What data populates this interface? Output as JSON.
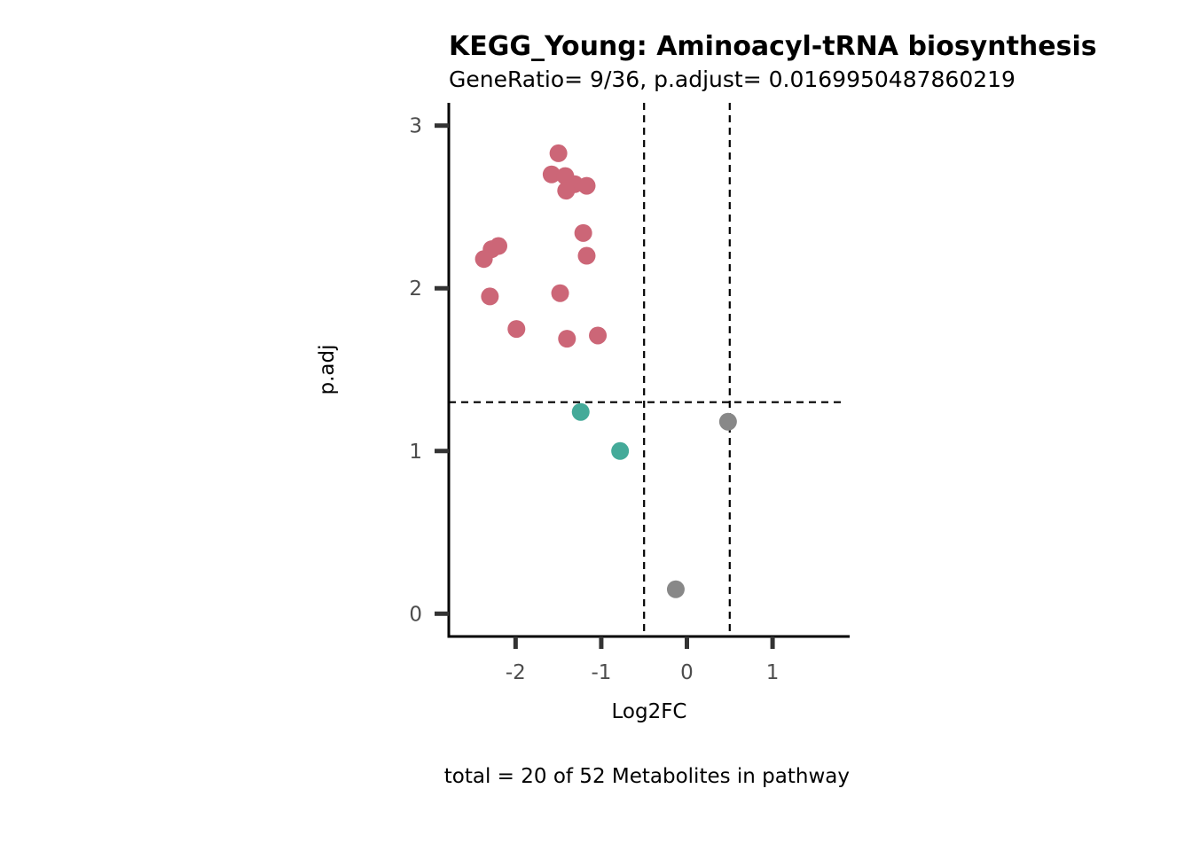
{
  "chart_data": {
    "type": "scatter",
    "title": "KEGG_Young: Aminoacyl-tRNA biosynthesis",
    "subtitle": "GeneRatio= 9/36, p.adjust= 0.0169950487860219",
    "xlabel": "Log2FC",
    "ylabel": "p.adj",
    "caption": "total = 20 of 52 Metabolites in pathway",
    "xlim": [
      -2.78,
      1.9
    ],
    "ylim": [
      -0.14,
      3.14
    ],
    "x_ticks": [
      -2,
      -1,
      0,
      1
    ],
    "x_tick_labels": [
      "-2",
      "-1",
      "0",
      "1"
    ],
    "y_ticks": [
      0,
      1,
      2,
      3
    ],
    "y_tick_labels": [
      "0",
      "1",
      "2",
      "3"
    ],
    "thresholds": {
      "vlines": [
        -0.5,
        0.5
      ],
      "hline": 1.3
    },
    "grid": false,
    "legend": "none",
    "series": [
      {
        "color": "#cc6677",
        "points": [
          {
            "x": -1.5,
            "y": 2.83
          },
          {
            "x": -1.58,
            "y": 2.7
          },
          {
            "x": -1.42,
            "y": 2.69
          },
          {
            "x": -1.31,
            "y": 2.64
          },
          {
            "x": -1.17,
            "y": 2.63
          },
          {
            "x": -1.41,
            "y": 2.6
          },
          {
            "x": -1.21,
            "y": 2.34
          },
          {
            "x": -2.2,
            "y": 2.26
          },
          {
            "x": -2.28,
            "y": 2.24
          },
          {
            "x": -1.17,
            "y": 2.2
          },
          {
            "x": -2.37,
            "y": 2.18
          },
          {
            "x": -1.48,
            "y": 1.97
          },
          {
            "x": -2.3,
            "y": 1.95
          },
          {
            "x": -1.99,
            "y": 1.75
          },
          {
            "x": -1.04,
            "y": 1.71
          },
          {
            "x": -1.4,
            "y": 1.69
          }
        ]
      },
      {
        "color": "#44aa99",
        "points": [
          {
            "x": -1.24,
            "y": 1.24
          },
          {
            "x": -0.78,
            "y": 1.0
          }
        ]
      },
      {
        "color": "#888888",
        "points": [
          {
            "x": 0.48,
            "y": 1.18
          },
          {
            "x": -0.13,
            "y": 0.15
          }
        ]
      }
    ]
  }
}
